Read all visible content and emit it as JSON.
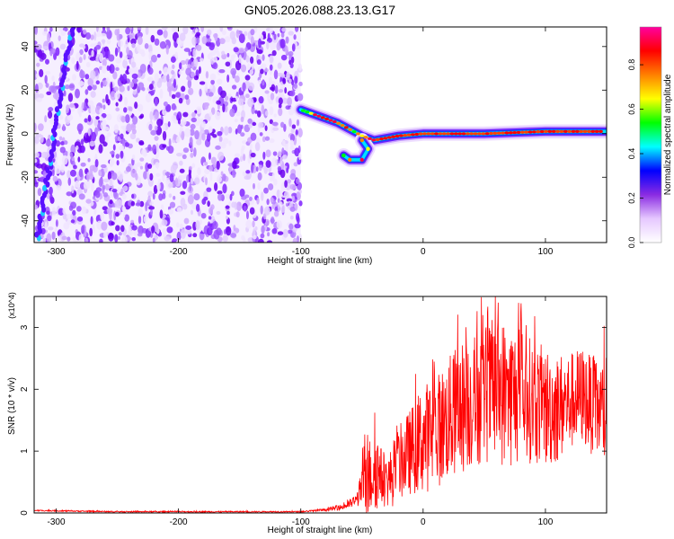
{
  "title": "GN05.2026.088.23.13.G17",
  "chart_data": [
    {
      "type": "heatmap",
      "xlabel": "Height of straight line (km)",
      "ylabel": "Frequency (Hz)",
      "xlim": [
        -318,
        150
      ],
      "ylim": [
        -50,
        49
      ],
      "xticks": [
        -300,
        -200,
        -100,
        0,
        100
      ],
      "yticks": [
        -40,
        -20,
        0,
        20,
        40
      ],
      "noise_region_x": [
        -318,
        -100
      ],
      "ridge": [
        {
          "x": -100,
          "y": 11
        },
        {
          "x": -90,
          "y": 9
        },
        {
          "x": -80,
          "y": 7
        },
        {
          "x": -70,
          "y": 5
        },
        {
          "x": -60,
          "y": 2
        },
        {
          "x": -50,
          "y": -1
        },
        {
          "x": -40,
          "y": -3
        },
        {
          "x": -20,
          "y": -1
        },
        {
          "x": 0,
          "y": 0
        },
        {
          "x": 50,
          "y": 0
        },
        {
          "x": 100,
          "y": 1
        },
        {
          "x": 150,
          "y": 1
        }
      ],
      "branch": [
        {
          "x": -50,
          "y": -3
        },
        {
          "x": -45,
          "y": -7
        },
        {
          "x": -50,
          "y": -12
        },
        {
          "x": -60,
          "y": -12
        },
        {
          "x": -65,
          "y": -10
        }
      ],
      "colorbar": {
        "label": "Normalized spectral amplitude",
        "range": [
          0,
          0.97
        ],
        "ticks": [
          "0.0",
          "0.2",
          "0.4",
          "0.6",
          "0.8"
        ],
        "colors": [
          "#ffffff",
          "#e6c8ff",
          "#8a2be2",
          "#0000ff",
          "#00ffff",
          "#00ff00",
          "#ffff00",
          "#ff8000",
          "#ff0000",
          "#ff00a0"
        ]
      },
      "grid": false
    },
    {
      "type": "line",
      "xlabel": "Height of straight line (km)",
      "ylabel": "SNR (10 * v/v)",
      "multiplier": "(x10^4)",
      "xlim": [
        -318,
        150
      ],
      "ylim": [
        0,
        3.5
      ],
      "xticks": [
        -300,
        -200,
        -100,
        0,
        100
      ],
      "yticks": [
        0,
        1,
        2,
        3
      ],
      "series": [
        {
          "color": "#ff0000",
          "x": [
            -318,
            -250,
            -150,
            -100,
            -80,
            -65,
            -55,
            -50,
            -47,
            -45,
            -40,
            -35,
            -30,
            -25,
            -20,
            -10,
            0,
            10,
            20,
            30,
            40,
            50,
            60,
            70,
            80,
            90,
            100,
            110,
            120,
            130,
            140,
            150
          ],
          "y": [
            0.04,
            0.02,
            0.02,
            0.02,
            0.05,
            0.1,
            0.2,
            0.4,
            0.7,
            0.5,
            0.8,
            0.6,
            0.5,
            0.6,
            0.8,
            1.0,
            1.2,
            1.3,
            1.5,
            1.7,
            1.8,
            1.9,
            2.0,
            1.9,
            1.9,
            1.8,
            1.7,
            1.7,
            1.8,
            1.9,
            1.7,
            1.6
          ],
          "spread": [
            0.01,
            0.01,
            0.01,
            0.01,
            0.02,
            0.05,
            0.1,
            0.3,
            0.9,
            0.6,
            0.8,
            0.5,
            0.4,
            0.5,
            0.6,
            0.7,
            0.9,
            0.9,
            1.0,
            1.1,
            1.1,
            1.1,
            1.2,
            1.2,
            1.1,
            1.0,
            1.0,
            0.9,
            0.8,
            0.8,
            0.8,
            0.9
          ]
        }
      ],
      "grid": false
    }
  ]
}
